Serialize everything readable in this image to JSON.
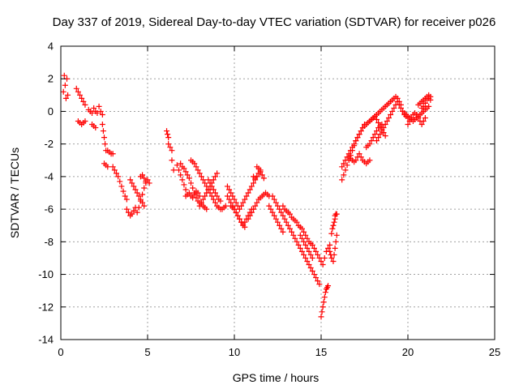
{
  "chart_data": {
    "type": "scatter",
    "title": "Day 337 of 2019, Sidereal Day-to-day VTEC variation (SDTVAR) for receiver p026",
    "xlabel": "GPS time / hours",
    "ylabel": "SDTVAR / TECUs",
    "xlim": [
      0,
      25
    ],
    "ylim": [
      -14,
      4
    ],
    "xticks": [
      0,
      5,
      10,
      15,
      20,
      25
    ],
    "yticks": [
      -14,
      -12,
      -10,
      -8,
      -6,
      -4,
      -2,
      0,
      2,
      4
    ],
    "grid": true,
    "marker": "plus",
    "color": "#ff0000",
    "segments": [
      {
        "x": [
          0.15,
          0.2,
          0.25,
          0.3,
          0.35,
          0.4
        ],
        "y": [
          1.2,
          2.2,
          1.6,
          0.8,
          2.0,
          1.0
        ]
      },
      {
        "x": [
          0.9,
          1.0,
          1.1,
          1.2,
          1.3,
          1.4
        ],
        "y": [
          1.4,
          1.2,
          1.0,
          0.8,
          0.6,
          0.4
        ]
      },
      {
        "x": [
          1.0,
          1.1,
          1.2,
          1.3,
          1.4
        ],
        "y": [
          -0.6,
          -0.7,
          -0.8,
          -0.7,
          -0.6
        ]
      },
      {
        "x": [
          1.6,
          1.7,
          1.8,
          1.9,
          2.0,
          2.1,
          2.2,
          2.3,
          2.4
        ],
        "y": [
          0.1,
          0.0,
          -0.1,
          0.2,
          0.0,
          -0.1,
          0.3,
          0.0,
          -0.2
        ]
      },
      {
        "x": [
          1.8,
          1.9,
          2.0
        ],
        "y": [
          -0.8,
          -0.9,
          -1.0
        ]
      },
      {
        "x": [
          2.4,
          2.45,
          2.5,
          2.55,
          2.6
        ],
        "y": [
          -0.8,
          -1.2,
          -1.6,
          -2.0,
          -2.4
        ]
      },
      {
        "x": [
          2.5,
          2.6,
          2.7
        ],
        "y": [
          -3.2,
          -3.3,
          -3.4
        ]
      },
      {
        "x": [
          2.7,
          2.8,
          2.9,
          3.0
        ],
        "y": [
          -2.4,
          -2.5,
          -2.6,
          -2.6
        ]
      },
      {
        "x": [
          3.0,
          3.1,
          3.2,
          3.3,
          3.4,
          3.5,
          3.6,
          3.7,
          3.8
        ],
        "y": [
          -3.4,
          -3.6,
          -3.8,
          -4.0,
          -4.3,
          -4.6,
          -4.9,
          -5.2,
          -5.4
        ]
      },
      {
        "x": [
          3.8,
          3.9,
          4.0,
          4.1,
          4.2,
          4.3
        ],
        "y": [
          -6.0,
          -6.2,
          -6.4,
          -6.3,
          -6.1,
          -5.9
        ]
      },
      {
        "x": [
          4.0,
          4.1,
          4.2,
          4.3,
          4.4,
          4.5,
          4.6,
          4.7,
          4.8
        ],
        "y": [
          -4.2,
          -4.4,
          -4.6,
          -4.8,
          -5.0,
          -5.2,
          -5.4,
          -5.6,
          -5.8
        ]
      },
      {
        "x": [
          4.4,
          4.5,
          4.6,
          4.7,
          4.8,
          4.9,
          5.0,
          5.1
        ],
        "y": [
          -6.2,
          -5.9,
          -5.5,
          -5.1,
          -4.7,
          -4.4,
          -4.2,
          -4.4
        ]
      },
      {
        "x": [
          4.6,
          4.7,
          4.8,
          4.9
        ],
        "y": [
          -4.0,
          -3.9,
          -4.1,
          -4.3
        ]
      },
      {
        "x": [
          6.1,
          6.15,
          6.2
        ],
        "y": [
          -1.2,
          -1.4,
          -1.6
        ]
      },
      {
        "x": [
          6.2,
          6.3,
          6.4
        ],
        "y": [
          -2.0,
          -2.2,
          -2.4
        ]
      },
      {
        "x": [
          6.4,
          6.5
        ],
        "y": [
          -3.0,
          -3.6
        ]
      },
      {
        "x": [
          6.7,
          6.8,
          6.9,
          7.0,
          7.1,
          7.2
        ],
        "y": [
          -3.3,
          -3.6,
          -3.9,
          -4.2,
          -4.5,
          -4.8
        ]
      },
      {
        "x": [
          6.9,
          7.0,
          7.1,
          7.2,
          7.3,
          7.4,
          7.5,
          7.6,
          7.7,
          7.8,
          7.9,
          8.0,
          8.1,
          8.2,
          8.3,
          8.4
        ],
        "y": [
          -3.2,
          -3.4,
          -3.5,
          -3.7,
          -3.9,
          -4.1,
          -4.4,
          -4.7,
          -5.0,
          -5.3,
          -5.5,
          -5.6,
          -5.7,
          -5.8,
          -5.9,
          -6.0
        ]
      },
      {
        "x": [
          7.2,
          7.3,
          7.4,
          7.5,
          7.6,
          7.7,
          7.8,
          7.9,
          8.0
        ],
        "y": [
          -5.2,
          -5.1,
          -5.0,
          -5.2,
          -5.3,
          -5.1,
          -4.9,
          -5.0,
          -5.2
        ]
      },
      {
        "x": [
          7.5,
          7.6,
          7.7,
          7.8,
          7.9,
          8.0,
          8.1,
          8.2,
          8.3,
          8.4,
          8.5,
          8.6,
          8.7,
          8.8,
          8.9,
          9.0,
          9.1,
          9.2,
          9.3,
          9.4,
          9.5
        ],
        "y": [
          -3.0,
          -3.1,
          -3.2,
          -3.4,
          -3.6,
          -3.8,
          -4.0,
          -4.2,
          -4.4,
          -4.6,
          -4.8,
          -5.0,
          -5.2,
          -5.4,
          -5.6,
          -5.8,
          -5.9,
          -6.0,
          -6.0,
          -5.9,
          -5.8
        ]
      },
      {
        "x": [
          8.0,
          8.1,
          8.2,
          8.3,
          8.4,
          8.5,
          8.6,
          8.7,
          8.8,
          8.9,
          9.0
        ],
        "y": [
          -5.8,
          -5.6,
          -5.4,
          -5.2,
          -5.0,
          -4.8,
          -4.6,
          -4.4,
          -4.2,
          -4.0,
          -3.8
        ]
      },
      {
        "x": [
          8.5,
          8.6,
          8.7,
          8.8,
          8.9,
          9.0,
          9.1,
          9.2
        ],
        "y": [
          -4.2,
          -4.4,
          -4.6,
          -4.8,
          -5.0,
          -5.2,
          -5.4,
          -5.5
        ]
      },
      {
        "x": [
          9.6,
          9.7,
          9.8,
          9.9,
          10.0,
          10.1,
          10.2,
          10.3
        ],
        "y": [
          -4.6,
          -4.8,
          -5.0,
          -5.2,
          -5.4,
          -5.6,
          -5.8,
          -6.0
        ]
      },
      {
        "x": [
          9.6,
          9.7,
          9.8,
          9.9,
          10.0,
          10.1,
          10.2,
          10.3,
          10.4,
          10.5,
          10.6,
          10.7,
          10.8,
          10.9,
          11.0
        ],
        "y": [
          -5.2,
          -5.4,
          -5.6,
          -5.8,
          -6.0,
          -6.2,
          -6.4,
          -6.6,
          -6.8,
          -6.9,
          -6.8,
          -6.6,
          -6.4,
          -6.2,
          -6.0
        ]
      },
      {
        "x": [
          9.8,
          9.9,
          10.0,
          10.1,
          10.2,
          10.3,
          10.4,
          10.5,
          10.6
        ],
        "y": [
          -5.8,
          -5.9,
          -6.0,
          -6.2,
          -6.4,
          -6.6,
          -6.8,
          -7.0,
          -7.1
        ]
      },
      {
        "x": [
          10.4,
          10.5,
          10.6,
          10.7,
          10.8,
          10.9,
          11.0,
          11.1,
          11.2,
          11.3,
          11.4,
          11.5,
          11.6,
          11.7
        ],
        "y": [
          -5.8,
          -5.6,
          -5.4,
          -5.2,
          -5.0,
          -4.8,
          -4.6,
          -4.4,
          -4.2,
          -4.0,
          -3.8,
          -3.7,
          -3.9,
          -4.1
        ]
      },
      {
        "x": [
          10.8,
          10.9,
          11.0,
          11.1,
          11.2,
          11.3,
          11.4,
          11.5,
          11.6,
          11.7,
          11.8,
          11.9,
          12.0
        ],
        "y": [
          -6.6,
          -6.4,
          -6.2,
          -6.0,
          -5.8,
          -5.6,
          -5.4,
          -5.3,
          -5.2,
          -5.1,
          -5.0,
          -5.1,
          -5.2
        ]
      },
      {
        "x": [
          11.1,
          11.2,
          11.3
        ],
        "y": [
          -4.0,
          -4.1,
          -4.0
        ]
      },
      {
        "x": [
          11.3,
          11.4,
          11.5
        ],
        "y": [
          -3.4,
          -3.5,
          -3.6
        ]
      },
      {
        "x": [
          12.0,
          12.1,
          12.2,
          12.3,
          12.4,
          12.5,
          12.6,
          12.7,
          12.8
        ],
        "y": [
          -5.8,
          -6.0,
          -6.2,
          -6.4,
          -6.6,
          -6.8,
          -7.0,
          -7.2,
          -7.4
        ]
      },
      {
        "x": [
          12.2,
          12.3,
          12.4,
          12.5,
          12.6,
          12.7,
          12.8,
          12.9,
          13.0,
          13.1,
          13.2,
          13.3,
          13.4,
          13.5,
          13.6,
          13.7,
          13.8,
          13.9,
          14.0,
          14.1,
          14.2,
          14.3,
          14.4,
          14.5,
          14.6,
          14.7,
          14.8,
          14.9
        ],
        "y": [
          -5.2,
          -5.4,
          -5.6,
          -5.8,
          -6.0,
          -6.2,
          -6.4,
          -6.6,
          -6.8,
          -7.0,
          -7.2,
          -7.4,
          -7.6,
          -7.8,
          -8.0,
          -8.2,
          -8.4,
          -8.6,
          -8.8,
          -9.0,
          -9.2,
          -9.4,
          -9.6,
          -9.8,
          -10.0,
          -10.2,
          -10.4,
          -10.6
        ]
      },
      {
        "x": [
          12.8,
          12.9,
          13.0,
          13.1,
          13.2,
          13.3,
          13.4,
          13.5,
          13.6,
          13.7,
          13.8,
          13.9,
          14.0,
          14.1,
          14.2,
          14.3,
          14.4,
          14.5,
          14.6,
          14.7,
          14.8,
          14.9,
          15.0
        ],
        "y": [
          -5.8,
          -6.0,
          -6.1,
          -6.2,
          -6.3,
          -6.5,
          -6.6,
          -6.7,
          -6.8,
          -7.0,
          -7.1,
          -7.2,
          -7.4,
          -7.6,
          -7.8,
          -8.0,
          -8.1,
          -8.2,
          -8.4,
          -8.6,
          -8.8,
          -9.0,
          -9.2
        ]
      },
      {
        "x": [
          13.8,
          13.9,
          14.0,
          14.1,
          14.2,
          14.3,
          14.4,
          14.5
        ],
        "y": [
          -7.6,
          -7.8,
          -8.0,
          -8.2,
          -8.4,
          -8.6,
          -8.8,
          -9.0
        ]
      },
      {
        "x": [
          15.0,
          15.05,
          15.1,
          15.15,
          15.2,
          15.25,
          15.3,
          15.35,
          15.4
        ],
        "y": [
          -12.6,
          -12.3,
          -12.0,
          -11.7,
          -11.4,
          -11.1,
          -10.9,
          -10.8,
          -10.7
        ]
      },
      {
        "x": [
          15.1,
          15.2,
          15.3,
          15.4,
          15.5
        ],
        "y": [
          -9.4,
          -9.0,
          -8.6,
          -8.4,
          -8.2
        ]
      },
      {
        "x": [
          15.5,
          15.55,
          15.6,
          15.7,
          15.75,
          15.8,
          15.85,
          15.9
        ],
        "y": [
          -8.6,
          -8.8,
          -9.0,
          -9.2,
          -8.8,
          -8.4,
          -8.0,
          -7.6
        ]
      },
      {
        "x": [
          15.6,
          15.65,
          15.7,
          15.75,
          15.8
        ],
        "y": [
          -7.5,
          -7.2,
          -7.0,
          -6.8,
          -6.6
        ]
      },
      {
        "x": [
          15.8,
          15.85,
          15.9
        ],
        "y": [
          -6.4,
          -6.3,
          -6.3
        ]
      },
      {
        "x": [
          16.2,
          16.3,
          16.4,
          16.5,
          16.6,
          16.7,
          16.8,
          16.9,
          17.0,
          17.1,
          17.2,
          17.3,
          17.4,
          17.5
        ],
        "y": [
          -4.2,
          -3.9,
          -3.6,
          -3.3,
          -3.0,
          -2.7,
          -2.4,
          -2.1,
          -1.8,
          -1.6,
          -1.4,
          -1.2,
          -1.0,
          -0.8
        ]
      },
      {
        "x": [
          16.2,
          16.3,
          16.4,
          16.5,
          16.6,
          16.7,
          16.8,
          16.9,
          17.0,
          17.1,
          17.2,
          17.3,
          17.4,
          17.5,
          17.6,
          17.7,
          17.8,
          17.9,
          18.0,
          18.1,
          18.2,
          18.3,
          18.4,
          18.5,
          18.6,
          18.7,
          18.8,
          18.9,
          19.0,
          19.1,
          19.2,
          19.3,
          19.4,
          19.5,
          19.6
        ],
        "y": [
          -3.4,
          -3.2,
          -3.0,
          -2.8,
          -2.6,
          -2.4,
          -2.2,
          -2.0,
          -1.8,
          -1.6,
          -1.4,
          -1.2,
          -1.0,
          -0.9,
          -0.8,
          -0.7,
          -0.6,
          -0.5,
          -0.4,
          -0.3,
          -0.2,
          -0.1,
          0.0,
          0.1,
          0.2,
          0.3,
          0.4,
          0.5,
          0.6,
          0.7,
          0.8,
          0.9,
          0.8,
          0.6,
          0.4
        ]
      },
      {
        "x": [
          16.6,
          16.7,
          16.8,
          16.9,
          17.0,
          17.1,
          17.2,
          17.3,
          17.4,
          17.5,
          17.6,
          17.7,
          17.8
        ],
        "y": [
          -2.8,
          -2.9,
          -3.0,
          -3.1,
          -3.0,
          -2.8,
          -2.6,
          -2.8,
          -3.0,
          -3.1,
          -3.2,
          -3.1,
          -3.0
        ]
      },
      {
        "x": [
          17.6,
          17.7,
          17.8,
          17.9,
          18.0,
          18.1,
          18.2,
          18.3,
          18.4,
          18.5
        ],
        "y": [
          -2.2,
          -2.1,
          -2.0,
          -1.8,
          -1.6,
          -1.4,
          -1.2,
          -1.0,
          -0.9,
          -0.8
        ]
      },
      {
        "x": [
          17.8,
          17.9,
          18.0,
          18.1,
          18.2,
          18.3,
          18.4,
          18.5,
          18.6,
          18.7
        ],
        "y": [
          -0.6,
          -0.5,
          -0.4,
          -0.3,
          -0.5,
          -0.7,
          -0.9,
          -1.1,
          -1.3,
          -1.5
        ]
      },
      {
        "x": [
          18.2,
          18.3,
          18.4,
          18.5,
          18.6,
          18.7,
          18.8,
          18.9,
          19.0,
          19.1,
          19.2,
          19.3,
          19.4,
          19.5,
          19.6,
          19.7,
          19.8,
          19.9,
          20.0
        ],
        "y": [
          -1.8,
          -1.6,
          -1.4,
          -1.2,
          -1.0,
          -0.8,
          -0.6,
          -0.4,
          -0.2,
          0.0,
          0.2,
          0.4,
          0.6,
          0.4,
          0.2,
          0.0,
          -0.2,
          -0.3,
          -0.4
        ]
      },
      {
        "x": [
          19.6,
          19.7,
          19.8,
          19.9,
          20.0,
          20.1,
          20.2,
          20.3,
          20.4,
          20.5,
          20.6,
          20.7,
          20.8,
          20.9,
          21.0,
          21.1,
          21.2
        ],
        "y": [
          0.2,
          0.0,
          -0.1,
          -0.2,
          -0.3,
          -0.4,
          -0.5,
          -0.6,
          -0.5,
          -0.4,
          -0.3,
          -0.2,
          -0.1,
          0.0,
          0.1,
          0.2,
          0.3
        ]
      },
      {
        "x": [
          20.0,
          20.1,
          20.2,
          20.3,
          20.4,
          20.5,
          20.6,
          20.7,
          20.8,
          20.9,
          21.0
        ],
        "y": [
          -0.8,
          -0.6,
          -0.4,
          -0.2,
          -0.1,
          -0.2,
          -0.4,
          -0.6,
          -0.8,
          -0.6,
          -0.4
        ]
      },
      {
        "x": [
          20.6,
          20.7,
          20.8,
          20.9,
          21.0,
          21.1,
          21.2,
          21.3
        ],
        "y": [
          0.4,
          0.5,
          0.6,
          0.7,
          0.8,
          0.9,
          1.0,
          0.9
        ]
      },
      {
        "x": [
          20.8,
          20.9,
          21.0,
          21.1,
          21.2,
          21.3
        ],
        "y": [
          0.2,
          0.3,
          0.5,
          0.7,
          0.8,
          0.7
        ]
      }
    ]
  }
}
